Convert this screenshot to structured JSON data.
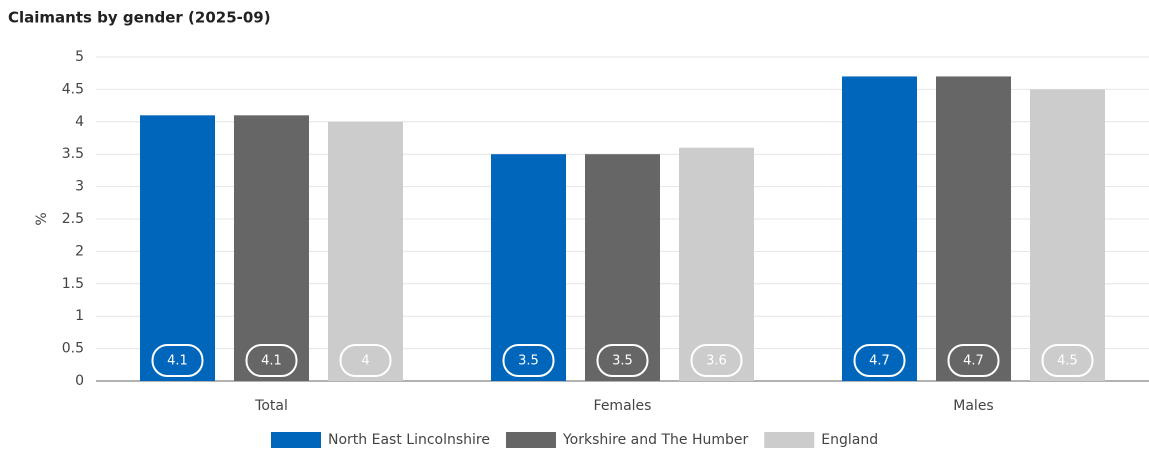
{
  "chart_data": {
    "type": "bar",
    "title": "Claimants by gender (2025-09)",
    "y_label": "%",
    "categories": [
      "Total",
      "Females",
      "Males"
    ],
    "series": [
      {
        "name": "North East Lincolnshire",
        "color": "#0066bb",
        "values": [
          4.1,
          3.5,
          4.7
        ]
      },
      {
        "name": "Yorkshire and The Humber",
        "color": "#666666",
        "values": [
          4.1,
          3.5,
          4.7
        ]
      },
      {
        "name": "England",
        "color": "#cccccc",
        "values": [
          4,
          3.6,
          4.5
        ]
      }
    ],
    "ylim": [
      0,
      5
    ],
    "yticks": [
      0,
      0.5,
      1,
      1.5,
      2,
      2.5,
      3,
      3.5,
      4,
      4.5,
      5
    ],
    "grid": true,
    "legend": "bottom"
  }
}
